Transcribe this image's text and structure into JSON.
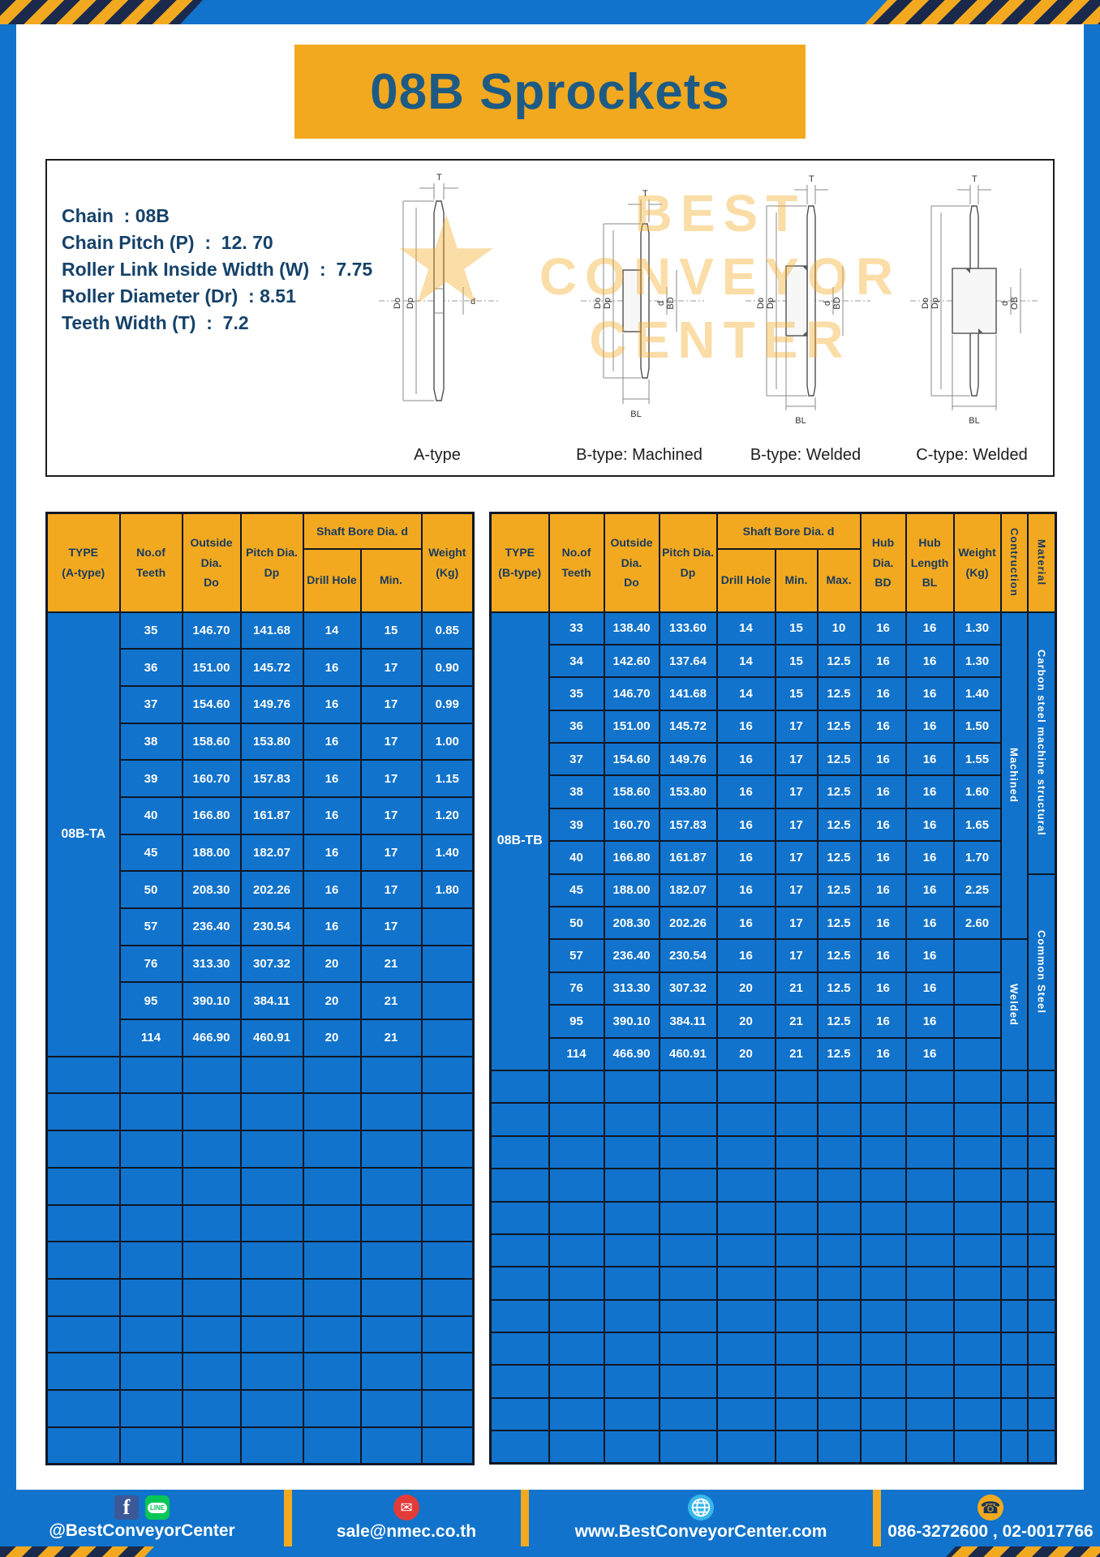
{
  "colors": {
    "blue": "#1173cb",
    "yellow": "#f3a91f",
    "navy": "#1b2a4c",
    "border": "#0e1726",
    "title-text": "#1d5b85",
    "spec-text": "#154269",
    "header-text": "#173a5e",
    "facebook": "#3b5998",
    "line": "#06c755",
    "email": "#e23c39",
    "globe": "#38b7ea"
  },
  "page": {
    "title": "08B Sprockets"
  },
  "specs": {
    "lines": [
      "Chain  : 08B",
      "Chain Pitch (P)  :  12. 70",
      "Roller Link Inside Width (W)  :  7.75",
      "Roller Diameter (Dr)  : 8.51",
      "Teeth Width (T)  :  7.2"
    ],
    "watermark": [
      "BEST",
      "CONVEYOR",
      "CENTER"
    ],
    "watermark_logo": "★",
    "diagrams": [
      {
        "label": "A-type",
        "dim_t": "T",
        "dim_do": "Do",
        "dim_dp": "Dp",
        "dim_d": "d"
      },
      {
        "label": "B-type: Machined",
        "dim_t": "T",
        "dim_do": "Do",
        "dim_dp": "Dp",
        "dim_d": "d",
        "dim_bd": "BD",
        "dim_bl": "BL"
      },
      {
        "label": "B-type: Welded",
        "dim_t": "T",
        "dim_do": "Do",
        "dim_dp": "Dp",
        "dim_d": "d",
        "dim_bd": "BD",
        "dim_bl": "BL"
      },
      {
        "label": "C-type: Welded",
        "dim_t": "T",
        "dim_do": "Do",
        "dim_dp": "Dp",
        "dim_d": "d",
        "dim_ob": "OB",
        "dim_bl": "BL"
      }
    ]
  },
  "table_a": {
    "type_label": "08B-TA",
    "header": {
      "type": "TYPE\n(A-type)",
      "teeth": "No.of\nTeeth",
      "outside": "Outside\nDia.\nDo",
      "pitch": "Pitch Dia.\nDp",
      "shaft_bore": "Shaft Bore Dia. d",
      "drill": "Drill Hole",
      "min": "Min.",
      "weight": "Weight\n(Kg)"
    },
    "rows": [
      {
        "teeth": "35",
        "do": "146.70",
        "dp": "141.68",
        "drill": "14",
        "min": "15",
        "weight": "0.85"
      },
      {
        "teeth": "36",
        "do": "151.00",
        "dp": "145.72",
        "drill": "16",
        "min": "17",
        "weight": "0.90"
      },
      {
        "teeth": "37",
        "do": "154.60",
        "dp": "149.76",
        "drill": "16",
        "min": "17",
        "weight": "0.99"
      },
      {
        "teeth": "38",
        "do": "158.60",
        "dp": "153.80",
        "drill": "16",
        "min": "17",
        "weight": "1.00"
      },
      {
        "teeth": "39",
        "do": "160.70",
        "dp": "157.83",
        "drill": "16",
        "min": "17",
        "weight": "1.15"
      },
      {
        "teeth": "40",
        "do": "166.80",
        "dp": "161.87",
        "drill": "16",
        "min": "17",
        "weight": "1.20"
      },
      {
        "teeth": "45",
        "do": "188.00",
        "dp": "182.07",
        "drill": "16",
        "min": "17",
        "weight": "1.40"
      },
      {
        "teeth": "50",
        "do": "208.30",
        "dp": "202.26",
        "drill": "16",
        "min": "17",
        "weight": "1.80"
      },
      {
        "teeth": "57",
        "do": "236.40",
        "dp": "230.54",
        "drill": "16",
        "min": "17",
        "weight": ""
      },
      {
        "teeth": "76",
        "do": "313.30",
        "dp": "307.32",
        "drill": "20",
        "min": "21",
        "weight": ""
      },
      {
        "teeth": "95",
        "do": "390.10",
        "dp": "384.11",
        "drill": "20",
        "min": "21",
        "weight": ""
      },
      {
        "teeth": "114",
        "do": "466.90",
        "dp": "460.91",
        "drill": "20",
        "min": "21",
        "weight": ""
      }
    ],
    "empty_rows": 11
  },
  "table_b": {
    "type_label": "08B-TB",
    "header": {
      "type": "TYPE\n(B-type)",
      "teeth": "No.of\nTeeth",
      "outside": "Outside\nDia.\nDo",
      "pitch": "Pitch Dia.\nDp",
      "shaft_bore": "Shaft Bore Dia. d",
      "drill": "Drill Hole",
      "min": "Min.",
      "max": "Max.",
      "hub_dia": "Hub Dia.\nBD",
      "hub_len": "Hub\nLength\nBL",
      "weight": "Weight\n(Kg)",
      "construction": "Contruction",
      "material": "Material"
    },
    "rows": [
      {
        "teeth": "33",
        "do": "138.40",
        "dp": "133.60",
        "drill": "14",
        "min": "15",
        "max": "10",
        "bd": "16",
        "bl": "16",
        "weight": "1.30"
      },
      {
        "teeth": "34",
        "do": "142.60",
        "dp": "137.64",
        "drill": "14",
        "min": "15",
        "max": "12.5",
        "bd": "16",
        "bl": "16",
        "weight": "1.30"
      },
      {
        "teeth": "35",
        "do": "146.70",
        "dp": "141.68",
        "drill": "14",
        "min": "15",
        "max": "12.5",
        "bd": "16",
        "bl": "16",
        "weight": "1.40"
      },
      {
        "teeth": "36",
        "do": "151.00",
        "dp": "145.72",
        "drill": "16",
        "min": "17",
        "max": "12.5",
        "bd": "16",
        "bl": "16",
        "weight": "1.50"
      },
      {
        "teeth": "37",
        "do": "154.60",
        "dp": "149.76",
        "drill": "16",
        "min": "17",
        "max": "12.5",
        "bd": "16",
        "bl": "16",
        "weight": "1.55"
      },
      {
        "teeth": "38",
        "do": "158.60",
        "dp": "153.80",
        "drill": "16",
        "min": "17",
        "max": "12.5",
        "bd": "16",
        "bl": "16",
        "weight": "1.60"
      },
      {
        "teeth": "39",
        "do": "160.70",
        "dp": "157.83",
        "drill": "16",
        "min": "17",
        "max": "12.5",
        "bd": "16",
        "bl": "16",
        "weight": "1.65"
      },
      {
        "teeth": "40",
        "do": "166.80",
        "dp": "161.87",
        "drill": "16",
        "min": "17",
        "max": "12.5",
        "bd": "16",
        "bl": "16",
        "weight": "1.70"
      },
      {
        "teeth": "45",
        "do": "188.00",
        "dp": "182.07",
        "drill": "16",
        "min": "17",
        "max": "12.5",
        "bd": "16",
        "bl": "16",
        "weight": "2.25"
      },
      {
        "teeth": "50",
        "do": "208.30",
        "dp": "202.26",
        "drill": "16",
        "min": "17",
        "max": "12.5",
        "bd": "16",
        "bl": "16",
        "weight": "2.60"
      },
      {
        "teeth": "57",
        "do": "236.40",
        "dp": "230.54",
        "drill": "16",
        "min": "17",
        "max": "12.5",
        "bd": "16",
        "bl": "16",
        "weight": ""
      },
      {
        "teeth": "76",
        "do": "313.30",
        "dp": "307.32",
        "drill": "20",
        "min": "21",
        "max": "12.5",
        "bd": "16",
        "bl": "16",
        "weight": ""
      },
      {
        "teeth": "95",
        "do": "390.10",
        "dp": "384.11",
        "drill": "20",
        "min": "21",
        "max": "12.5",
        "bd": "16",
        "bl": "16",
        "weight": ""
      },
      {
        "teeth": "114",
        "do": "466.90",
        "dp": "460.91",
        "drill": "20",
        "min": "21",
        "max": "12.5",
        "bd": "16",
        "bl": "16",
        "weight": ""
      }
    ],
    "construction_groups": [
      {
        "label": "Machined",
        "span": 10
      },
      {
        "label": "Welded",
        "span": 4
      }
    ],
    "material_groups": [
      {
        "label": "Carbon steel  machine structural",
        "span": 8
      },
      {
        "label": "Common  Steel",
        "span": 6
      }
    ],
    "empty_rows": 12
  },
  "footer": {
    "social_text": "@BestConveyorCenter",
    "email_text": "sale@nmec.co.th",
    "website_text": "www.BestConveyorCenter.com",
    "phone_text": "086-3272600 , 02-0017766",
    "icons": {
      "facebook": "f",
      "line": "LINE",
      "email": "✉",
      "phone": "☎"
    }
  }
}
